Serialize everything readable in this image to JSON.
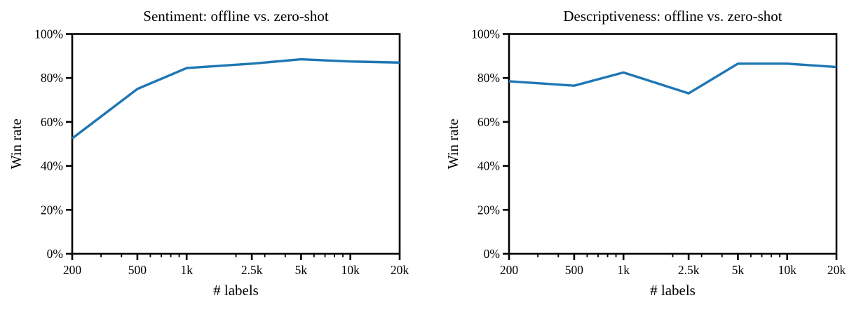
{
  "figure": {
    "background": "#ffffff",
    "text_color": "#000000",
    "axis_color": "#000000"
  },
  "chart_data": [
    {
      "type": "line",
      "title": "Sentiment: offline vs. zero-shot",
      "xlabel": "# labels",
      "ylabel": "Win rate",
      "x_scale": "log",
      "grid": false,
      "legend": "none",
      "xlim": [
        200,
        20000
      ],
      "ylim": [
        0,
        100
      ],
      "x": [
        200,
        500,
        1000,
        2500,
        5000,
        10000,
        20000
      ],
      "x_tick_labels": [
        "200",
        "500",
        "1k",
        "2.5k",
        "5k",
        "10k",
        "20k"
      ],
      "x_minor_ticks": [
        300,
        400,
        600,
        700,
        800,
        900,
        2000,
        3000,
        4000,
        6000,
        7000,
        8000,
        9000
      ],
      "y_tick_values": [
        0,
        20,
        40,
        60,
        80,
        100
      ],
      "y_tick_labels": [
        "0%",
        "20%",
        "40%",
        "60%",
        "80%",
        "100%"
      ],
      "values": [
        52.5,
        75,
        84.5,
        86.5,
        88.5,
        87.5,
        87
      ],
      "unit": "%",
      "line_color": "#1f77b4"
    },
    {
      "type": "line",
      "title": "Descriptiveness: offline vs. zero-shot",
      "xlabel": "# labels",
      "ylabel": "Win rate",
      "x_scale": "log",
      "grid": false,
      "legend": "none",
      "xlim": [
        200,
        20000
      ],
      "ylim": [
        0,
        100
      ],
      "x": [
        200,
        500,
        1000,
        2500,
        5000,
        10000,
        20000
      ],
      "x_tick_labels": [
        "200",
        "500",
        "1k",
        "2.5k",
        "5k",
        "10k",
        "20k"
      ],
      "x_minor_ticks": [
        300,
        400,
        600,
        700,
        800,
        900,
        2000,
        3000,
        4000,
        6000,
        7000,
        8000,
        9000
      ],
      "y_tick_values": [
        0,
        20,
        40,
        60,
        80,
        100
      ],
      "y_tick_labels": [
        "0%",
        "20%",
        "40%",
        "60%",
        "80%",
        "100%"
      ],
      "values": [
        78.5,
        76.5,
        82.5,
        73,
        86.5,
        86.5,
        85
      ],
      "unit": "%",
      "line_color": "#1f77b4"
    }
  ]
}
